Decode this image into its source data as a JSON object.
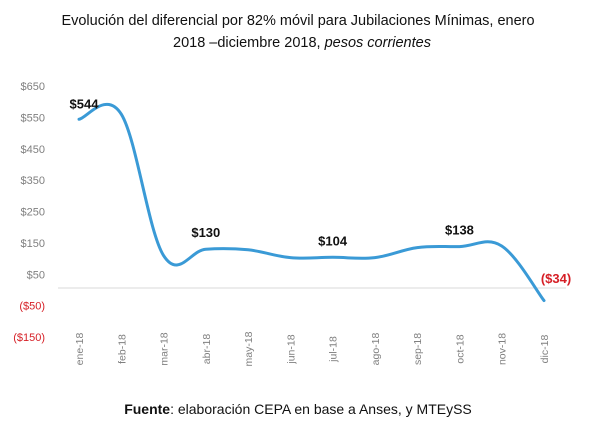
{
  "title_line1": "Evolución del diferencial por 82% móvil para Jubilaciones Mínimas, enero",
  "title_line2_plain": "2018 –diciembre 2018,",
  "title_line2_italic": "pesos corrientes",
  "source_bold": "Fuente",
  "source_rest": ": elaboración CEPA en base a Anses, y MTEySS",
  "colors": {
    "line": "#3a9ad6",
    "negative_label": "#d61f26",
    "axis_text": "#7f7f7f",
    "axis_line": "#d9d9d9"
  },
  "chart_data": {
    "type": "line",
    "smooth": true,
    "grid": false,
    "categories": [
      "ene-18",
      "feb-18",
      "mar-18",
      "abr-18",
      "may-18",
      "jun-18",
      "jul-18",
      "ago-18",
      "sep-18",
      "oct-18",
      "nov-18",
      "dic-18"
    ],
    "series": [
      {
        "values": [
          544,
          560,
          110,
          130,
          128,
          103,
          104,
          103,
          135,
          138,
          140,
          -34
        ]
      }
    ],
    "ylim": [
      -150,
      650
    ],
    "yticks": [
      {
        "value": 650,
        "label": "$650",
        "negative": false
      },
      {
        "value": 550,
        "label": "$550",
        "negative": false
      },
      {
        "value": 450,
        "label": "$450",
        "negative": false
      },
      {
        "value": 350,
        "label": "$350",
        "negative": false
      },
      {
        "value": 250,
        "label": "$250",
        "negative": false
      },
      {
        "value": 150,
        "label": "$150",
        "negative": false
      },
      {
        "value": 50,
        "label": "$50",
        "negative": false
      },
      {
        "value": -50,
        "label": "($50)",
        "negative": true
      },
      {
        "value": -150,
        "label": "($150)",
        "negative": true
      }
    ],
    "data_labels": [
      {
        "index": 0,
        "text": "$544",
        "negative": false
      },
      {
        "index": 3,
        "text": "$130",
        "negative": false
      },
      {
        "index": 6,
        "text": "$104",
        "negative": false
      },
      {
        "index": 9,
        "text": "$138",
        "negative": false
      },
      {
        "index": 11,
        "text": "($34)",
        "negative": true
      }
    ]
  }
}
